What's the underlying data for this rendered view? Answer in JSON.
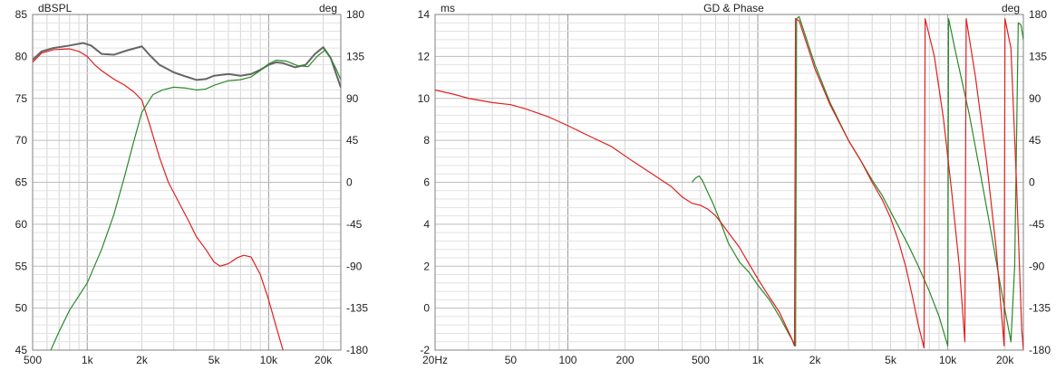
{
  "chart_data": [
    {
      "type": "line",
      "title": "",
      "left_axis_unit": "dBSPL",
      "right_axis_unit": "deg",
      "x_scale": "log",
      "xlim": [
        500,
        25000
      ],
      "ylim_left": [
        45,
        85
      ],
      "ylim_right": [
        -180,
        180
      ],
      "grid": true,
      "x_ticks": [
        500,
        1000,
        2000,
        5000,
        10000,
        20000
      ],
      "x_tick_labels": [
        "500",
        "1k",
        "2k",
        "5k",
        "10k",
        "20k"
      ],
      "y_left_ticks": [
        45,
        50,
        55,
        60,
        65,
        70,
        75,
        80,
        85
      ],
      "y_left_tick_labels": [
        "45",
        "50",
        "55",
        "60",
        "65",
        "70",
        "75",
        "80",
        "85"
      ],
      "y_right_ticks": [
        -180,
        -135,
        -90,
        -45,
        0,
        45,
        90,
        135,
        180
      ],
      "y_right_tick_labels": [
        "-180",
        "-135",
        "-90",
        "-45",
        "0",
        "45",
        "90",
        "135",
        "180"
      ],
      "series": [
        {
          "color": "#666666",
          "axis": "left",
          "width": 2,
          "points": [
            [
              500,
              79.6
            ],
            [
              560,
              80.6
            ],
            [
              650,
              81.0
            ],
            [
              800,
              81.3
            ],
            [
              950,
              81.6
            ],
            [
              1050,
              81.3
            ],
            [
              1200,
              80.3
            ],
            [
              1400,
              80.2
            ],
            [
              1650,
              80.7
            ],
            [
              2000,
              81.2
            ],
            [
              2200,
              80.2
            ],
            [
              2500,
              79.0
            ],
            [
              3000,
              78.1
            ],
            [
              3500,
              77.6
            ],
            [
              4000,
              77.2
            ],
            [
              4500,
              77.3
            ],
            [
              5000,
              77.7
            ],
            [
              6000,
              77.9
            ],
            [
              7000,
              77.7
            ],
            [
              8000,
              77.9
            ],
            [
              9000,
              78.4
            ],
            [
              10000,
              79.0
            ],
            [
              11000,
              79.3
            ],
            [
              12000,
              79.2
            ],
            [
              14000,
              78.7
            ],
            [
              16000,
              79.0
            ],
            [
              18000,
              80.3
            ],
            [
              20000,
              81.1
            ],
            [
              22000,
              79.8
            ],
            [
              25000,
              76.3
            ]
          ]
        },
        {
          "color": "#e02020",
          "axis": "left",
          "width": 1.2,
          "points": [
            [
              500,
              79.3
            ],
            [
              560,
              80.4
            ],
            [
              650,
              80.8
            ],
            [
              800,
              80.9
            ],
            [
              900,
              80.6
            ],
            [
              1000,
              80.0
            ],
            [
              1100,
              79.0
            ],
            [
              1200,
              78.3
            ],
            [
              1400,
              77.3
            ],
            [
              1600,
              76.6
            ],
            [
              1800,
              75.8
            ],
            [
              2000,
              74.8
            ],
            [
              2200,
              72.0
            ],
            [
              2500,
              68.0
            ],
            [
              2800,
              65.0
            ],
            [
              3200,
              62.6
            ],
            [
              3600,
              60.5
            ],
            [
              4000,
              58.5
            ],
            [
              4500,
              57.0
            ],
            [
              5000,
              55.5
            ],
            [
              5400,
              55.0
            ],
            [
              6000,
              55.3
            ],
            [
              6700,
              56.0
            ],
            [
              7300,
              56.3
            ],
            [
              8000,
              56.1
            ],
            [
              9000,
              54.0
            ],
            [
              10000,
              51.0
            ],
            [
              11000,
              47.8
            ],
            [
              12000,
              45.0
            ]
          ]
        },
        {
          "color": "#2a8a2a",
          "axis": "right",
          "width": 1.2,
          "points": [
            [
              630,
              -180
            ],
            [
              700,
              -160
            ],
            [
              800,
              -137
            ],
            [
              1000,
              -108
            ],
            [
              1200,
              -72
            ],
            [
              1400,
              -35
            ],
            [
              1600,
              5
            ],
            [
              1800,
              43
            ],
            [
              2000,
              75
            ],
            [
              2300,
              94
            ],
            [
              2600,
              99
            ],
            [
              3000,
              102
            ],
            [
              3500,
              101
            ],
            [
              4000,
              99
            ],
            [
              4500,
              100
            ],
            [
              5000,
              104
            ],
            [
              6000,
              109
            ],
            [
              7000,
              110
            ],
            [
              8000,
              113
            ],
            [
              9000,
              120
            ],
            [
              10000,
              127
            ],
            [
              11000,
              131
            ],
            [
              12500,
              130
            ],
            [
              14500,
              125
            ],
            [
              16500,
              124
            ],
            [
              18500,
              135
            ],
            [
              20500,
              142
            ],
            [
              22000,
              133
            ],
            [
              23500,
              122
            ],
            [
              25000,
              110
            ]
          ]
        }
      ]
    },
    {
      "type": "line",
      "title": "GD & Phase",
      "left_axis_unit": "ms",
      "right_axis_unit": "deg",
      "x_scale": "log",
      "xlim": [
        20,
        25000
      ],
      "ylim_left": [
        -2,
        14
      ],
      "ylim_right": [
        -180,
        180
      ],
      "grid": true,
      "x_ticks": [
        20,
        50,
        100,
        200,
        500,
        1000,
        2000,
        5000,
        10000,
        20000
      ],
      "x_tick_labels": [
        "20Hz",
        "50",
        "100",
        "200",
        "500",
        "1k",
        "2k",
        "5k",
        "10k",
        "20k"
      ],
      "y_left_ticks": [
        -2,
        0,
        2,
        4,
        6,
        8,
        10,
        12,
        14
      ],
      "y_left_tick_labels": [
        "-2",
        "0",
        "2",
        "4",
        "6",
        "8",
        "10",
        "12",
        "14"
      ],
      "y_right_ticks": [
        -180,
        -135,
        -90,
        -45,
        0,
        45,
        90,
        135,
        180
      ],
      "y_right_tick_labels": [
        "-180",
        "-135",
        "-90",
        "-45",
        "0",
        "45",
        "90",
        "135",
        "180"
      ],
      "series": [
        {
          "color": "#2a8a2a",
          "axis": "left",
          "width": 1.2,
          "points": [
            [
              450,
              6.0
            ],
            [
              470,
              6.2
            ],
            [
              490,
              6.3
            ],
            [
              510,
              6.1
            ],
            [
              540,
              5.6
            ],
            [
              580,
              5.0
            ],
            [
              630,
              4.2
            ],
            [
              700,
              3.1
            ],
            [
              800,
              2.2
            ],
            [
              900,
              1.7
            ],
            [
              1000,
              1.1
            ],
            [
              1150,
              0.4
            ],
            [
              1300,
              -0.4
            ],
            [
              1450,
              -1.2
            ],
            [
              1580,
              -1.8
            ],
            [
              1600,
              13.8
            ],
            [
              1650,
              13.9
            ],
            [
              1750,
              13.2
            ],
            [
              2000,
              11.6
            ],
            [
              2400,
              9.8
            ],
            [
              3000,
              8.0
            ],
            [
              3500,
              7.0
            ],
            [
              4000,
              6.1
            ],
            [
              4500,
              5.4
            ],
            [
              5000,
              4.6
            ],
            [
              5500,
              3.9
            ],
            [
              6200,
              3.0
            ],
            [
              7000,
              2.0
            ],
            [
              8000,
              0.8
            ],
            [
              9000,
              -0.4
            ],
            [
              10000,
              -1.8
            ],
            [
              10100,
              13.8
            ],
            [
              11000,
              12.2
            ],
            [
              13000,
              9.2
            ],
            [
              15000,
              6.2
            ],
            [
              17000,
              3.5
            ],
            [
              19000,
              1.0
            ],
            [
              21500,
              -1.6
            ],
            [
              22500,
              2.0
            ],
            [
              23500,
              13.6
            ],
            [
              24300,
              13.5
            ],
            [
              25000,
              12.8
            ]
          ]
        },
        {
          "color": "#e02020",
          "axis": "left",
          "width": 1.2,
          "points": [
            [
              20,
              10.4
            ],
            [
              25,
              10.2
            ],
            [
              30,
              10.0
            ],
            [
              40,
              9.8
            ],
            [
              50,
              9.7
            ],
            [
              60,
              9.5
            ],
            [
              80,
              9.1
            ],
            [
              100,
              8.7
            ],
            [
              130,
              8.2
            ],
            [
              170,
              7.7
            ],
            [
              220,
              7.0
            ],
            [
              300,
              6.2
            ],
            [
              350,
              5.8
            ],
            [
              400,
              5.3
            ],
            [
              450,
              5.0
            ],
            [
              500,
              4.9
            ],
            [
              550,
              4.7
            ],
            [
              600,
              4.4
            ],
            [
              650,
              4.0
            ],
            [
              700,
              3.6
            ],
            [
              800,
              2.9
            ],
            [
              900,
              2.1
            ],
            [
              1000,
              1.4
            ],
            [
              1100,
              0.8
            ],
            [
              1300,
              -0.2
            ],
            [
              1500,
              -1.4
            ],
            [
              1560,
              -1.8
            ],
            [
              1580,
              13.8
            ],
            [
              1650,
              13.7
            ],
            [
              1750,
              13.0
            ],
            [
              2000,
              11.4
            ],
            [
              2400,
              9.7
            ],
            [
              3000,
              8.0
            ],
            [
              3500,
              7.0
            ],
            [
              4000,
              6.0
            ],
            [
              4500,
              5.2
            ],
            [
              5000,
              4.3
            ],
            [
              5500,
              3.2
            ],
            [
              6000,
              2.0
            ],
            [
              6500,
              0.6
            ],
            [
              7000,
              -0.8
            ],
            [
              7500,
              -1.9
            ],
            [
              7600,
              13.8
            ],
            [
              8500,
              12.0
            ],
            [
              9500,
              9.0
            ],
            [
              10500,
              5.5
            ],
            [
              11500,
              2.0
            ],
            [
              12300,
              -1.6
            ],
            [
              12500,
              13.8
            ],
            [
              14000,
              11.0
            ],
            [
              16000,
              7.0
            ],
            [
              18000,
              2.8
            ],
            [
              19800,
              -1.8
            ],
            [
              20000,
              13.8
            ],
            [
              21500,
              12.4
            ],
            [
              23000,
              6.0
            ],
            [
              24500,
              -1.0
            ],
            [
              25000,
              -2.0
            ]
          ]
        }
      ]
    }
  ]
}
